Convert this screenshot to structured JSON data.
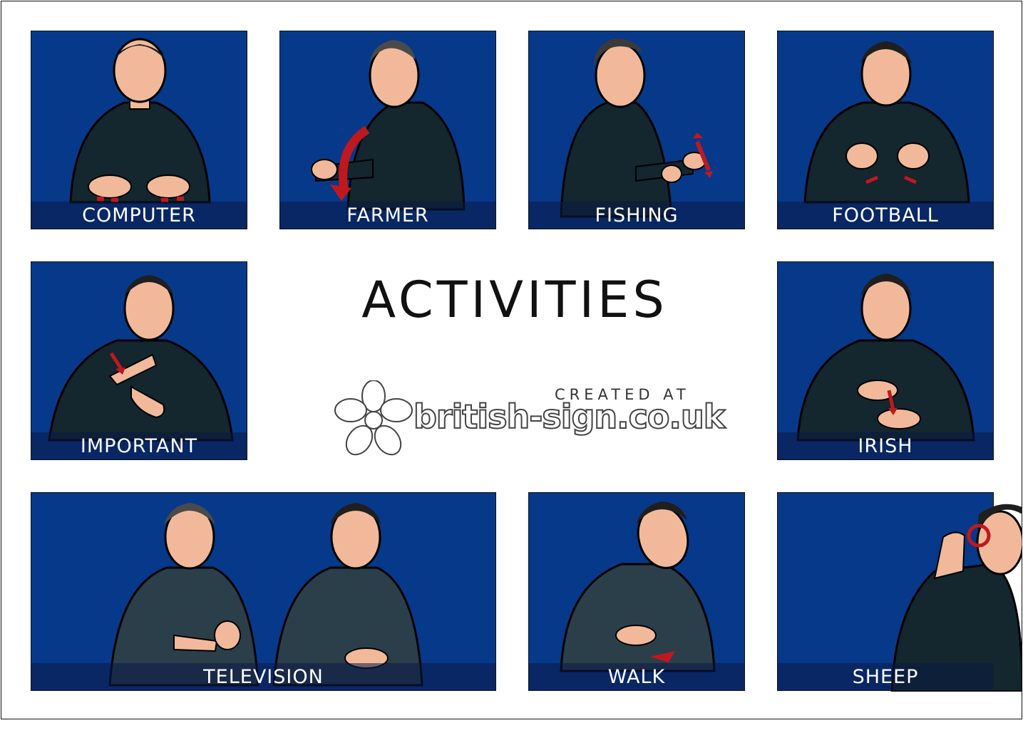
{
  "page": {
    "title": "ACTIVITIES"
  },
  "brand": {
    "created_at": "CREATED AT",
    "site": "british-sign.co.uk"
  },
  "cards": [
    {
      "label": "COMPUTER"
    },
    {
      "label": "FARMER"
    },
    {
      "label": "FISHING"
    },
    {
      "label": "FOOTBALL"
    },
    {
      "label": "IMPORTANT"
    },
    {
      "label": "IRISH"
    },
    {
      "label": "TELEVISION"
    },
    {
      "label": "WALK"
    },
    {
      "label": "SHEEP"
    }
  ],
  "colors": {
    "card_bg": "#07398a",
    "label_bar": "#0a1946",
    "arrow": "#c0181f",
    "skin": "#f1b99a",
    "sweater": "#14262e"
  }
}
